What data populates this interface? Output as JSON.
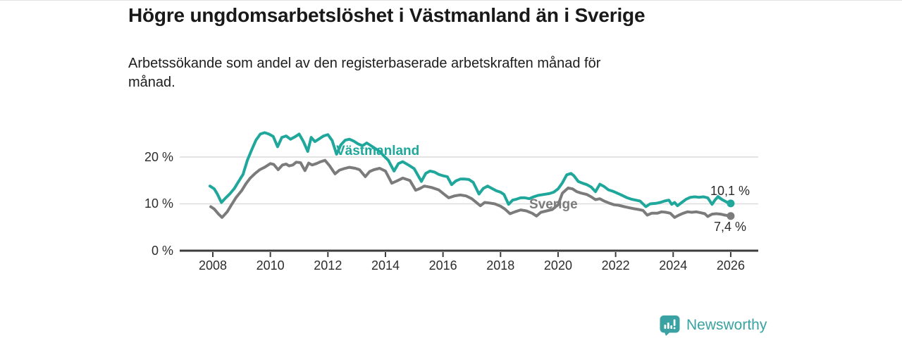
{
  "page": {
    "background": "#ffffff"
  },
  "chart_data": {
    "type": "line",
    "title": "Högre ungdomsarbetslöshet i Västmanland än i Sverige",
    "subtitle_lines": [
      "Arbetssökande som andel av den registerbaserade arbetskraften månad för",
      "månad."
    ],
    "grid": "horizontal",
    "legend_position": "inline-on-lines",
    "x_ticks": [
      2008,
      2010,
      2012,
      2014,
      2016,
      2018,
      2020,
      2022,
      2024,
      2026
    ],
    "x_tick_labels": [
      "2008",
      "2010",
      "2012",
      "2014",
      "2016",
      "2018",
      "2020",
      "2022",
      "2024",
      "2026"
    ],
    "y_ticks": [
      0,
      10,
      20
    ],
    "y_tick_labels": [
      "0 %",
      "10 %",
      "20 %"
    ],
    "ylim": [
      0,
      27
    ],
    "xlim": [
      2006.85,
      2026.95
    ],
    "series": [
      {
        "name": "Västmanland",
        "color": "#1fa79c",
        "end_label": "10,1 %",
        "end_value": 10.1,
        "points": [
          [
            2007.9,
            13.8
          ],
          [
            2008.05,
            13.2
          ],
          [
            2008.15,
            12.2
          ],
          [
            2008.3,
            10.3
          ],
          [
            2008.45,
            11.3
          ],
          [
            2008.6,
            12.2
          ],
          [
            2008.75,
            13.3
          ],
          [
            2008.9,
            14.8
          ],
          [
            2009.05,
            16.3
          ],
          [
            2009.2,
            19.3
          ],
          [
            2009.35,
            21.5
          ],
          [
            2009.5,
            23.6
          ],
          [
            2009.65,
            24.9
          ],
          [
            2009.8,
            25.2
          ],
          [
            2009.95,
            24.9
          ],
          [
            2010.1,
            24.4
          ],
          [
            2010.25,
            22.2
          ],
          [
            2010.4,
            24.2
          ],
          [
            2010.55,
            24.5
          ],
          [
            2010.7,
            23.8
          ],
          [
            2010.85,
            24.3
          ],
          [
            2011.0,
            24.9
          ],
          [
            2011.15,
            23.3
          ],
          [
            2011.3,
            21.2
          ],
          [
            2011.42,
            24.2
          ],
          [
            2011.55,
            23.3
          ],
          [
            2011.7,
            23.9
          ],
          [
            2011.85,
            24.5
          ],
          [
            2012.0,
            24.8
          ],
          [
            2012.15,
            23.5
          ],
          [
            2012.3,
            20.6
          ],
          [
            2012.45,
            22.6
          ],
          [
            2012.6,
            23.6
          ],
          [
            2012.75,
            23.8
          ],
          [
            2012.9,
            23.4
          ],
          [
            2013.05,
            22.8
          ],
          [
            2013.2,
            22.4
          ],
          [
            2013.35,
            23.0
          ],
          [
            2013.5,
            22.4
          ],
          [
            2013.65,
            21.8
          ],
          [
            2013.8,
            21.2
          ],
          [
            2013.95,
            20.2
          ],
          [
            2014.1,
            19.3
          ],
          [
            2014.3,
            17.0
          ],
          [
            2014.45,
            18.6
          ],
          [
            2014.6,
            19.0
          ],
          [
            2014.8,
            18.3
          ],
          [
            2015.0,
            17.5
          ],
          [
            2015.25,
            14.8
          ],
          [
            2015.4,
            16.5
          ],
          [
            2015.55,
            17.0
          ],
          [
            2015.7,
            16.8
          ],
          [
            2015.85,
            16.3
          ],
          [
            2016.0,
            16.0
          ],
          [
            2016.15,
            15.8
          ],
          [
            2016.3,
            14.1
          ],
          [
            2016.45,
            14.9
          ],
          [
            2016.6,
            15.3
          ],
          [
            2016.75,
            15.3
          ],
          [
            2016.9,
            15.2
          ],
          [
            2017.05,
            14.6
          ],
          [
            2017.25,
            12.1
          ],
          [
            2017.4,
            13.3
          ],
          [
            2017.55,
            13.8
          ],
          [
            2017.7,
            13.3
          ],
          [
            2017.85,
            12.8
          ],
          [
            2018.0,
            12.5
          ],
          [
            2018.12,
            12.0
          ],
          [
            2018.28,
            9.9
          ],
          [
            2018.42,
            10.8
          ],
          [
            2018.55,
            11.0
          ],
          [
            2018.7,
            11.3
          ],
          [
            2018.85,
            11.3
          ],
          [
            2019.0,
            11.1
          ],
          [
            2019.15,
            11.5
          ],
          [
            2019.3,
            11.8
          ],
          [
            2019.5,
            12.0
          ],
          [
            2019.7,
            12.2
          ],
          [
            2019.85,
            12.5
          ],
          [
            2020.0,
            13.2
          ],
          [
            2020.15,
            14.5
          ],
          [
            2020.3,
            16.2
          ],
          [
            2020.45,
            16.5
          ],
          [
            2020.55,
            16.0
          ],
          [
            2020.7,
            14.8
          ],
          [
            2020.85,
            14.4
          ],
          [
            2021.0,
            14.1
          ],
          [
            2021.15,
            13.6
          ],
          [
            2021.3,
            12.6
          ],
          [
            2021.45,
            14.2
          ],
          [
            2021.6,
            13.7
          ],
          [
            2021.75,
            13.0
          ],
          [
            2021.9,
            12.7
          ],
          [
            2022.05,
            12.3
          ],
          [
            2022.2,
            11.9
          ],
          [
            2022.4,
            11.3
          ],
          [
            2022.55,
            11.0
          ],
          [
            2022.7,
            10.8
          ],
          [
            2022.85,
            10.6
          ],
          [
            2023.05,
            9.4
          ],
          [
            2023.2,
            10.0
          ],
          [
            2023.4,
            10.1
          ],
          [
            2023.55,
            10.3
          ],
          [
            2023.7,
            10.6
          ],
          [
            2023.85,
            10.8
          ],
          [
            2023.95,
            9.9
          ],
          [
            2024.05,
            10.3
          ],
          [
            2024.15,
            9.6
          ],
          [
            2024.3,
            10.3
          ],
          [
            2024.45,
            11.0
          ],
          [
            2024.6,
            11.4
          ],
          [
            2024.75,
            11.5
          ],
          [
            2024.9,
            11.4
          ],
          [
            2025.05,
            11.5
          ],
          [
            2025.2,
            11.3
          ],
          [
            2025.35,
            9.9
          ],
          [
            2025.45,
            10.8
          ],
          [
            2025.55,
            11.5
          ],
          [
            2025.7,
            10.9
          ],
          [
            2025.85,
            10.4
          ],
          [
            2026.0,
            10.1
          ]
        ]
      },
      {
        "name": "Sverige",
        "color": "#7b7b7b",
        "end_label": "7,4 %",
        "end_value": 7.4,
        "points": [
          [
            2007.93,
            9.4
          ],
          [
            2008.05,
            8.9
          ],
          [
            2008.2,
            7.8
          ],
          [
            2008.32,
            7.1
          ],
          [
            2008.5,
            8.3
          ],
          [
            2008.65,
            9.8
          ],
          [
            2008.8,
            11.3
          ],
          [
            2009.0,
            12.8
          ],
          [
            2009.15,
            14.3
          ],
          [
            2009.3,
            15.5
          ],
          [
            2009.47,
            16.5
          ],
          [
            2009.63,
            17.3
          ],
          [
            2009.8,
            17.8
          ],
          [
            2010.0,
            18.6
          ],
          [
            2010.12,
            18.4
          ],
          [
            2010.27,
            17.3
          ],
          [
            2010.42,
            18.3
          ],
          [
            2010.55,
            18.5
          ],
          [
            2010.65,
            18.1
          ],
          [
            2010.78,
            18.3
          ],
          [
            2010.9,
            18.9
          ],
          [
            2011.05,
            18.8
          ],
          [
            2011.2,
            17.1
          ],
          [
            2011.33,
            18.7
          ],
          [
            2011.45,
            18.3
          ],
          [
            2011.6,
            18.6
          ],
          [
            2011.75,
            19.0
          ],
          [
            2011.9,
            19.3
          ],
          [
            2012.05,
            18.2
          ],
          [
            2012.25,
            16.4
          ],
          [
            2012.4,
            17.2
          ],
          [
            2012.55,
            17.5
          ],
          [
            2012.75,
            17.8
          ],
          [
            2012.95,
            17.6
          ],
          [
            2013.1,
            17.3
          ],
          [
            2013.3,
            15.8
          ],
          [
            2013.45,
            16.9
          ],
          [
            2013.6,
            17.3
          ],
          [
            2013.8,
            17.6
          ],
          [
            2014.0,
            17.0
          ],
          [
            2014.22,
            14.4
          ],
          [
            2014.4,
            14.9
          ],
          [
            2014.6,
            15.5
          ],
          [
            2014.85,
            15.0
          ],
          [
            2015.05,
            12.9
          ],
          [
            2015.2,
            13.3
          ],
          [
            2015.35,
            13.8
          ],
          [
            2015.6,
            13.5
          ],
          [
            2015.85,
            13.0
          ],
          [
            2016.05,
            12.0
          ],
          [
            2016.2,
            11.3
          ],
          [
            2016.4,
            11.7
          ],
          [
            2016.6,
            11.9
          ],
          [
            2016.8,
            11.7
          ],
          [
            2017.0,
            11.1
          ],
          [
            2017.3,
            9.6
          ],
          [
            2017.45,
            10.3
          ],
          [
            2017.6,
            10.2
          ],
          [
            2017.8,
            10.0
          ],
          [
            2018.0,
            9.5
          ],
          [
            2018.15,
            8.9
          ],
          [
            2018.33,
            7.9
          ],
          [
            2018.5,
            8.3
          ],
          [
            2018.7,
            8.7
          ],
          [
            2018.9,
            8.5
          ],
          [
            2019.1,
            8.0
          ],
          [
            2019.25,
            7.4
          ],
          [
            2019.4,
            8.2
          ],
          [
            2019.6,
            8.5
          ],
          [
            2019.8,
            8.8
          ],
          [
            2020.0,
            9.8
          ],
          [
            2020.15,
            12.3
          ],
          [
            2020.35,
            13.4
          ],
          [
            2020.5,
            13.2
          ],
          [
            2020.65,
            12.6
          ],
          [
            2020.8,
            12.3
          ],
          [
            2021.0,
            12.0
          ],
          [
            2021.15,
            11.5
          ],
          [
            2021.3,
            10.9
          ],
          [
            2021.45,
            11.1
          ],
          [
            2021.6,
            10.6
          ],
          [
            2021.8,
            10.1
          ],
          [
            2021.95,
            9.8
          ],
          [
            2022.1,
            9.7
          ],
          [
            2022.3,
            9.4
          ],
          [
            2022.45,
            9.2
          ],
          [
            2022.6,
            9.0
          ],
          [
            2022.8,
            8.8
          ],
          [
            2022.95,
            8.6
          ],
          [
            2023.1,
            7.6
          ],
          [
            2023.25,
            8.0
          ],
          [
            2023.45,
            8.0
          ],
          [
            2023.6,
            8.3
          ],
          [
            2023.75,
            8.2
          ],
          [
            2023.9,
            8.0
          ],
          [
            2024.05,
            7.1
          ],
          [
            2024.2,
            7.6
          ],
          [
            2024.35,
            8.0
          ],
          [
            2024.5,
            8.3
          ],
          [
            2024.65,
            8.2
          ],
          [
            2024.8,
            8.3
          ],
          [
            2024.95,
            8.1
          ],
          [
            2025.1,
            7.9
          ],
          [
            2025.2,
            7.3
          ],
          [
            2025.35,
            7.8
          ],
          [
            2025.5,
            7.9
          ],
          [
            2025.65,
            7.8
          ],
          [
            2025.8,
            7.6
          ],
          [
            2025.9,
            7.5
          ],
          [
            2026.0,
            7.4
          ]
        ]
      }
    ]
  },
  "footer": {
    "brand": "Newsworthy",
    "brand_color": "#3aa2a2",
    "logo_icon": "bar-chart-speech-bubble"
  }
}
